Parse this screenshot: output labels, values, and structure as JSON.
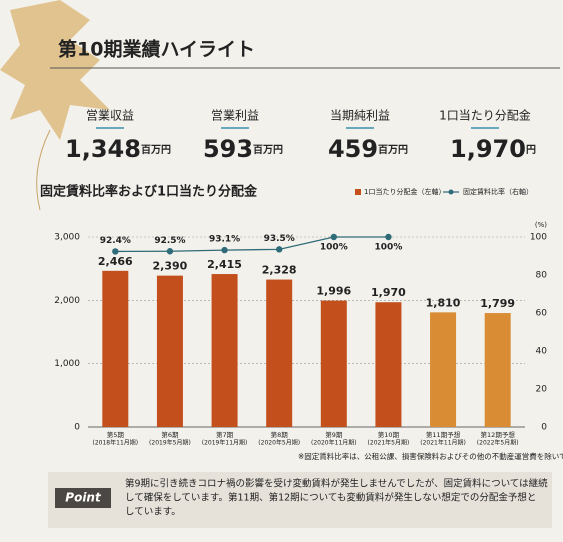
{
  "header": {
    "title": "第10期業績ハイライト"
  },
  "kpis": [
    {
      "label": "営業収益",
      "value": "1,348",
      "unit": "百万円"
    },
    {
      "label": "営業利益",
      "value": "593",
      "unit": "百万円"
    },
    {
      "label": "当期純利益",
      "value": "459",
      "unit": "百万円"
    },
    {
      "label": "1口当たり分配金",
      "value": "1,970",
      "unit": "円"
    }
  ],
  "chart_data": {
    "type": "bar",
    "title": "固定賃料比率および1口当たり分配金",
    "categories": [
      "第5期",
      "第6期",
      "第7期",
      "第8期",
      "第9期",
      "第10期",
      "第11期予想",
      "第12期予想"
    ],
    "category_sublabels": [
      "(2018年11月期)",
      "(2019年5月期)",
      "(2019年11月期)",
      "(2020年5月期)",
      "(2020年11月期)",
      "(2021年5月期)",
      "(2021年11月期)",
      "(2022年5月期)"
    ],
    "series": [
      {
        "name": "1口当たり分配金（左軸）",
        "type": "bar",
        "color": "#c24f1c",
        "colors": [
          "#c24f1c",
          "#c24f1c",
          "#c24f1c",
          "#c24f1c",
          "#c24f1c",
          "#c24f1c",
          "#d98c33",
          "#d98c33"
        ],
        "values": [
          2466,
          2390,
          2415,
          2328,
          1996,
          1970,
          1810,
          1799
        ],
        "value_labels": [
          "2,466",
          "2,390",
          "2,415",
          "2,328",
          "1,996",
          "1,970",
          "1,810",
          "1,799"
        ]
      },
      {
        "name": "固定賃料比率（右軸）",
        "type": "line",
        "axis": "y2",
        "color": "#2f6b78",
        "values": [
          92.4,
          92.5,
          93.1,
          93.5,
          100,
          100,
          null,
          null
        ],
        "value_labels": [
          "92.4%",
          "92.5%",
          "93.1%",
          "93.5%",
          "100%",
          "100%",
          null,
          null
        ]
      }
    ],
    "ylim": [
      0,
      3000
    ],
    "yticks": [
      0,
      {
        "value": 1000,
        "label": "1,000"
      },
      {
        "value": 2000,
        "label": "2,000"
      },
      {
        "value": 3000,
        "label": "3,000"
      }
    ],
    "y2lim": [
      0,
      100
    ],
    "y2ticks": [
      0,
      20,
      40,
      60,
      80,
      100
    ],
    "y2unit": "(%)",
    "grid": true,
    "note": "※固定賃料比率は、公租公課、損害保険料およびその他の不動産運営費を除いて算出"
  },
  "point": {
    "label": "Point",
    "lines": [
      "第9期に引き続きコロナ禍の影響を受け変動賃料が発生しませんでしたが、固定賃料については継続",
      "して確保をしています。第11期、第12期についても変動賃料が発生しない想定での分配金予想と",
      "しています。"
    ]
  }
}
